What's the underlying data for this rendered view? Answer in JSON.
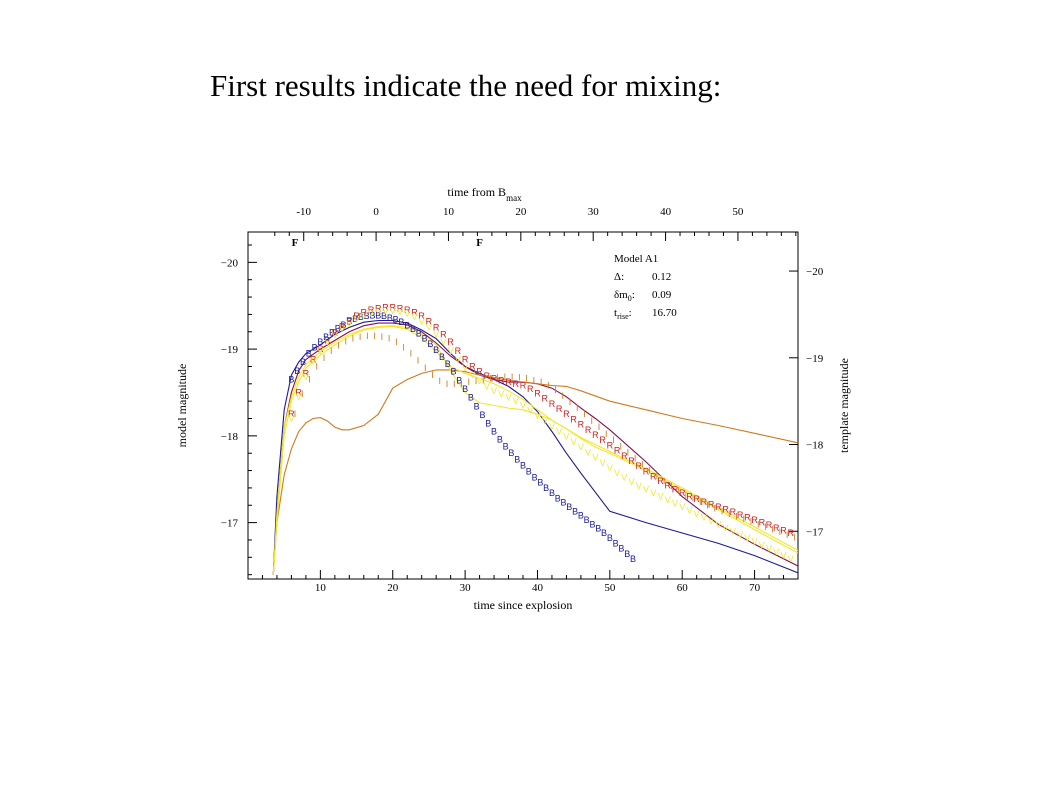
{
  "slide": {
    "title": "First results indicate the need for mixing:"
  },
  "chart_data": {
    "type": "line",
    "xlabel": "time since explosion",
    "x2label_main": "time from B",
    "x2label_sub": "max",
    "ylabel": "model magnitude",
    "y2label": "template magnitude",
    "xlim": [
      0,
      76
    ],
    "x2_offset": 17.7,
    "ylim": [
      -16.35,
      -20.35
    ],
    "x_ticks": [
      10,
      20,
      30,
      40,
      50,
      60,
      70
    ],
    "x2_ticks": [
      -10,
      0,
      10,
      20,
      30,
      40,
      50
    ],
    "y_ticks": [
      -20,
      -19,
      -18,
      -17
    ],
    "y2_ticks": [
      -20,
      -19,
      -18,
      -17
    ],
    "y2_offset": 0.1,
    "flags": [
      {
        "x": 6.5,
        "label": "F"
      },
      {
        "x": 32,
        "label": "F"
      }
    ],
    "legend": {
      "title": "Model A1",
      "rows": [
        {
          "sym": "Δ",
          "sub": "",
          "value": "0.12"
        },
        {
          "sym": "δm",
          "sub": "0",
          "value": "0.09"
        },
        {
          "sym": "t",
          "sub": "rise",
          "value": "16.70"
        }
      ]
    },
    "colors": {
      "blue": "#1a1a9a",
      "purple": "#8a0e4a",
      "orange": "#d07a1a",
      "yellow": "#f2e82a",
      "red": "#cc2020"
    },
    "series": [
      {
        "color": "#1a1a9a",
        "x": [
          3.5,
          4,
          5,
          6,
          7,
          8,
          10,
          12,
          14,
          16,
          18,
          20,
          22,
          24,
          26,
          28,
          30,
          32,
          34,
          36,
          38,
          40,
          42,
          44,
          46,
          48,
          50,
          55,
          60,
          65,
          70,
          76
        ],
        "y": [
          -16.4,
          -17.3,
          -18.3,
          -18.7,
          -18.85,
          -18.95,
          -19.05,
          -19.17,
          -19.25,
          -19.31,
          -19.33,
          -19.33,
          -19.3,
          -19.22,
          -19.12,
          -18.95,
          -18.8,
          -18.72,
          -18.65,
          -18.57,
          -18.45,
          -18.28,
          -18.05,
          -17.8,
          -17.57,
          -17.35,
          -17.13,
          -17.0,
          -16.88,
          -16.76,
          -16.62,
          -16.42
        ]
      },
      {
        "color": "#8a0e4a",
        "x": [
          3.5,
          4,
          5,
          6,
          7,
          8,
          10,
          12,
          14,
          16,
          18,
          20,
          22,
          24,
          26,
          28,
          30,
          32,
          34,
          36,
          38,
          40,
          42,
          44,
          46,
          48,
          50,
          55,
          60,
          65,
          70,
          76
        ],
        "y": [
          -16.4,
          -17.1,
          -18.1,
          -18.5,
          -18.75,
          -18.88,
          -19.0,
          -19.1,
          -19.2,
          -19.27,
          -19.3,
          -19.3,
          -19.28,
          -19.2,
          -19.07,
          -18.92,
          -18.8,
          -18.7,
          -18.65,
          -18.62,
          -18.62,
          -18.6,
          -18.55,
          -18.45,
          -18.32,
          -18.2,
          -18.07,
          -17.7,
          -17.3,
          -16.98,
          -16.75,
          -16.5
        ]
      },
      {
        "color": "#d07a1a",
        "x": [
          3.5,
          4,
          5,
          6,
          7,
          8,
          9,
          10,
          11,
          12,
          13,
          14,
          16,
          18,
          20,
          22,
          24,
          26,
          28,
          30,
          32,
          34,
          36,
          38,
          40,
          42,
          44,
          46,
          50,
          55,
          60,
          65,
          70,
          76
        ],
        "y": [
          -16.4,
          -17.0,
          -17.55,
          -17.85,
          -18.05,
          -18.15,
          -18.2,
          -18.21,
          -18.17,
          -18.1,
          -18.07,
          -18.07,
          -18.12,
          -18.25,
          -18.55,
          -18.65,
          -18.72,
          -18.76,
          -18.76,
          -18.74,
          -18.7,
          -18.67,
          -18.64,
          -18.62,
          -18.6,
          -18.58,
          -18.57,
          -18.52,
          -18.4,
          -18.3,
          -18.2,
          -18.12,
          -18.03,
          -17.92
        ]
      },
      {
        "color": "#f2e82a",
        "x": [
          3.5,
          4,
          5,
          6,
          7,
          8,
          10,
          12,
          14,
          16,
          18,
          20,
          22,
          24,
          26,
          28,
          30,
          32,
          34,
          36,
          38,
          40,
          42,
          44,
          46,
          48,
          50,
          55,
          60,
          65,
          70,
          76
        ],
        "y": [
          -16.4,
          -17.1,
          -18.1,
          -18.45,
          -18.68,
          -18.82,
          -18.97,
          -19.08,
          -19.17,
          -19.23,
          -19.26,
          -19.27,
          -19.25,
          -19.18,
          -19.05,
          -18.75,
          -18.5,
          -18.38,
          -18.35,
          -18.32,
          -18.3,
          -18.25,
          -18.18,
          -18.08,
          -17.97,
          -17.87,
          -17.8,
          -17.6,
          -17.38,
          -17.15,
          -16.92,
          -16.65
        ]
      },
      {
        "color": "#f2e82a",
        "x": [
          3.5,
          4,
          5,
          6,
          7,
          8,
          10,
          12,
          14,
          16,
          18,
          20,
          22,
          24,
          26,
          28,
          30,
          32,
          34,
          36,
          38,
          40,
          42,
          44,
          46,
          48,
          50,
          55,
          60,
          65,
          70,
          76
        ],
        "y": [
          -16.4,
          -17.0,
          -18.0,
          -18.4,
          -18.62,
          -18.78,
          -18.93,
          -19.05,
          -19.15,
          -19.22,
          -19.25,
          -19.26,
          -19.23,
          -19.13,
          -18.97,
          -18.8,
          -18.72,
          -18.66,
          -18.6,
          -18.52,
          -18.42,
          -18.3,
          -18.18,
          -18.08,
          -17.98,
          -17.9,
          -17.82,
          -17.62,
          -17.4,
          -17.17,
          -16.95,
          -16.68
        ]
      }
    ],
    "markers": [
      {
        "letter": "B",
        "color": "#1a1a9a",
        "x": [
          6.0,
          6.8,
          7.6,
          8.4,
          9.2,
          10.0,
          10.8,
          11.6,
          12.4,
          13.2,
          14.0,
          14.8,
          15.6,
          16.4,
          17.2,
          18.0,
          18.8,
          19.6,
          20.4,
          21.2,
          22.0,
          22.8,
          23.6,
          24.4,
          25.2,
          26.0,
          26.8,
          27.6,
          28.4,
          29.2,
          30.0,
          30.8,
          31.6,
          32.4,
          33.2,
          34.0,
          34.8,
          35.6,
          36.4,
          37.2,
          38.0,
          38.8,
          39.6,
          40.4,
          41.2,
          42.0,
          42.8,
          43.6,
          44.4,
          45.2,
          46.0,
          46.8,
          47.6,
          48.4,
          49.2,
          50.0,
          50.8,
          51.6,
          52.4,
          53.2
        ],
        "y": [
          -18.65,
          -18.75,
          -18.85,
          -18.95,
          -19.02,
          -19.08,
          -19.14,
          -19.19,
          -19.24,
          -19.28,
          -19.32,
          -19.35,
          -19.37,
          -19.38,
          -19.39,
          -19.39,
          -19.38,
          -19.36,
          -19.34,
          -19.31,
          -19.27,
          -19.23,
          -19.18,
          -19.12,
          -19.06,
          -18.99,
          -18.91,
          -18.83,
          -18.74,
          -18.64,
          -18.54,
          -18.44,
          -18.34,
          -18.24,
          -18.14,
          -18.05,
          -17.96,
          -17.88,
          -17.8,
          -17.73,
          -17.66,
          -17.59,
          -17.52,
          -17.46,
          -17.4,
          -17.34,
          -17.28,
          -17.23,
          -17.18,
          -17.13,
          -17.08,
          -17.03,
          -16.98,
          -16.93,
          -16.88,
          -16.82,
          -16.76,
          -16.7,
          -16.64,
          -16.58
        ]
      },
      {
        "letter": "R",
        "color": "#cc2020",
        "x": [
          6.0,
          7.0,
          8.0,
          9.0,
          10.0,
          11.0,
          12.0,
          13.0,
          14.0,
          15.0,
          16.0,
          17.0,
          18.0,
          19.0,
          20.0,
          21.0,
          22.0,
          23.0,
          24.0,
          25.0,
          26.0,
          27.0,
          28.0,
          29.0,
          30.0,
          31.0,
          32.0,
          33.0,
          34.0,
          35.0,
          36.0,
          37.0,
          38.0,
          39.0,
          40.0,
          41.0,
          42.0,
          43.0,
          44.0,
          45.0,
          46.0,
          47.0,
          48.0,
          49.0,
          50.0,
          51.0,
          52.0,
          53.0,
          54.0,
          55.0,
          56.0,
          57.0,
          58.0,
          59.0,
          60.0,
          61.0,
          62.0,
          63.0,
          64.0,
          65.0,
          66.0,
          67.0,
          68.0,
          69.0,
          70.0,
          71.0,
          72.0,
          73.0,
          74.0,
          75.0
        ],
        "y": [
          -18.25,
          -18.5,
          -18.72,
          -18.88,
          -19.0,
          -19.1,
          -19.19,
          -19.26,
          -19.33,
          -19.38,
          -19.42,
          -19.45,
          -19.47,
          -19.48,
          -19.48,
          -19.47,
          -19.45,
          -19.42,
          -19.38,
          -19.32,
          -19.25,
          -19.17,
          -19.08,
          -18.98,
          -18.88,
          -18.8,
          -18.74,
          -18.69,
          -18.66,
          -18.64,
          -18.62,
          -18.6,
          -18.58,
          -18.54,
          -18.49,
          -18.43,
          -18.37,
          -18.31,
          -18.25,
          -18.19,
          -18.13,
          -18.07,
          -18.01,
          -17.95,
          -17.89,
          -17.83,
          -17.77,
          -17.71,
          -17.65,
          -17.59,
          -17.53,
          -17.48,
          -17.43,
          -17.38,
          -17.34,
          -17.3,
          -17.27,
          -17.24,
          -17.21,
          -17.18,
          -17.15,
          -17.12,
          -17.09,
          -17.06,
          -17.03,
          -17.0,
          -16.97,
          -16.94,
          -16.91,
          -16.88
        ]
      },
      {
        "letter": "V",
        "color": "#f2e82a",
        "x": [
          6.0,
          7.0,
          8.0,
          9.0,
          10.0,
          11.0,
          12.0,
          13.0,
          14.0,
          15.0,
          16.0,
          17.0,
          18.0,
          19.0,
          20.0,
          21.0,
          22.0,
          23.0,
          24.0,
          25.0,
          26.0,
          27.0,
          28.0,
          29.0,
          30.0,
          31.0,
          32.0,
          33.0,
          34.0,
          35.0,
          36.0,
          37.0,
          38.0,
          39.0,
          40.0,
          41.0,
          42.0,
          43.0,
          44.0,
          45.0,
          46.0,
          47.0,
          48.0,
          49.0,
          50.0,
          51.0,
          52.0,
          53.0,
          54.0,
          55.0,
          56.0,
          57.0,
          58.0,
          59.0,
          60.0,
          61.0,
          62.0,
          63.0,
          64.0,
          65.0,
          66.0,
          67.0,
          68.0,
          69.0,
          70.0,
          71.0,
          72.0,
          73.0,
          74.0,
          75.0
        ],
        "y": [
          -18.2,
          -18.45,
          -18.68,
          -18.86,
          -18.98,
          -19.08,
          -19.16,
          -19.23,
          -19.29,
          -19.34,
          -19.38,
          -19.41,
          -19.43,
          -19.44,
          -19.44,
          -19.43,
          -19.41,
          -19.37,
          -19.32,
          -19.25,
          -19.17,
          -19.08,
          -18.98,
          -18.88,
          -18.78,
          -18.7,
          -18.63,
          -18.57,
          -18.52,
          -18.48,
          -18.44,
          -18.4,
          -18.35,
          -18.29,
          -18.23,
          -18.17,
          -18.11,
          -18.05,
          -17.99,
          -17.93,
          -17.87,
          -17.81,
          -17.75,
          -17.69,
          -17.63,
          -17.57,
          -17.52,
          -17.47,
          -17.42,
          -17.38,
          -17.34,
          -17.3,
          -17.26,
          -17.22,
          -17.18,
          -17.14,
          -17.1,
          -17.06,
          -17.02,
          -16.98,
          -16.94,
          -16.9,
          -16.86,
          -16.82,
          -16.78,
          -16.74,
          -16.7,
          -16.66,
          -16.62,
          -16.58
        ]
      },
      {
        "letter": "I",
        "color": "#d07a1a",
        "x": [
          6.5,
          7.5,
          8.5,
          9.5,
          10.5,
          11.5,
          12.5,
          13.5,
          14.5,
          15.5,
          16.5,
          17.5,
          18.5,
          19.5,
          20.5,
          21.5,
          22.5,
          23.5,
          24.5,
          25.5,
          26.5,
          27.5,
          28.5,
          29.5,
          30.5,
          31.5,
          32.5,
          33.5,
          34.5,
          35.5,
          36.5,
          37.5,
          38.5,
          39.5,
          40.5,
          41.5,
          42.5,
          43.5,
          44.5,
          45.5,
          46.5,
          47.5,
          48.5,
          49.5,
          50.5,
          51.5,
          52.5,
          53.5,
          54.5,
          55.5,
          56.5,
          57.5,
          58.5,
          59.5,
          60.5,
          61.5,
          62.5,
          63.5,
          64.5,
          65.5,
          66.5,
          67.5,
          68.5,
          69.5,
          70.5,
          71.5,
          72.5,
          73.5,
          74.5,
          75.5
        ],
        "y": [
          -18.25,
          -18.48,
          -18.65,
          -18.8,
          -18.9,
          -18.98,
          -19.04,
          -19.09,
          -19.12,
          -19.14,
          -19.15,
          -19.15,
          -19.14,
          -19.12,
          -19.08,
          -19.02,
          -18.95,
          -18.87,
          -18.78,
          -18.7,
          -18.63,
          -18.6,
          -18.6,
          -18.6,
          -18.62,
          -18.63,
          -18.64,
          -18.66,
          -18.67,
          -18.68,
          -18.68,
          -18.67,
          -18.66,
          -18.64,
          -18.62,
          -18.58,
          -18.53,
          -18.46,
          -18.39,
          -18.32,
          -18.25,
          -18.17,
          -18.1,
          -18.02,
          -17.95,
          -17.88,
          -17.81,
          -17.74,
          -17.67,
          -17.6,
          -17.54,
          -17.48,
          -17.42,
          -17.37,
          -17.32,
          -17.28,
          -17.24,
          -17.2,
          -17.16,
          -17.13,
          -17.1,
          -17.07,
          -17.04,
          -17.01,
          -16.98,
          -16.95,
          -16.92,
          -16.89,
          -16.86,
          -16.83
        ]
      }
    ]
  }
}
